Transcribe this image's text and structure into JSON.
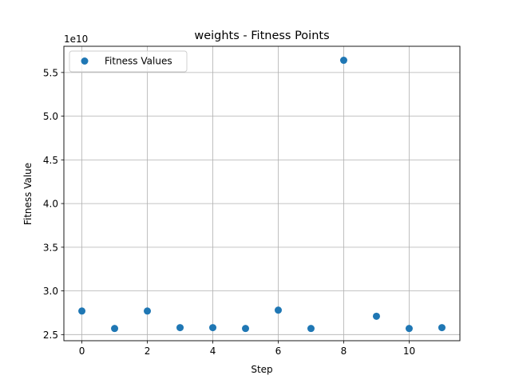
{
  "chart_data": {
    "type": "scatter",
    "title": "weights - Fitness Points",
    "xlabel": "Step",
    "ylabel": "Fitness Value",
    "y_offset_label": "1e10",
    "xlim": [
      -0.55,
      11.55
    ],
    "ylim": [
      2.43,
      5.8
    ],
    "x_ticks": [
      0,
      2,
      4,
      6,
      8,
      10
    ],
    "x_tick_labels": [
      "0",
      "2",
      "4",
      "6",
      "8",
      "10"
    ],
    "y_ticks": [
      2.5,
      3.0,
      3.5,
      4.0,
      4.5,
      5.0,
      5.5
    ],
    "y_tick_labels": [
      "2.5",
      "3.0",
      "3.5",
      "4.0",
      "4.5",
      "5.0",
      "5.5"
    ],
    "grid": true,
    "legend_position": "top-left",
    "series": [
      {
        "name": "Fitness Values",
        "color": "#1f77b4",
        "x": [
          0,
          1,
          2,
          3,
          4,
          5,
          6,
          7,
          8,
          9,
          10,
          11
        ],
        "y": [
          2.77,
          2.57,
          2.77,
          2.58,
          2.58,
          2.57,
          2.78,
          2.57,
          5.64,
          2.71,
          2.57,
          2.58
        ]
      }
    ]
  }
}
